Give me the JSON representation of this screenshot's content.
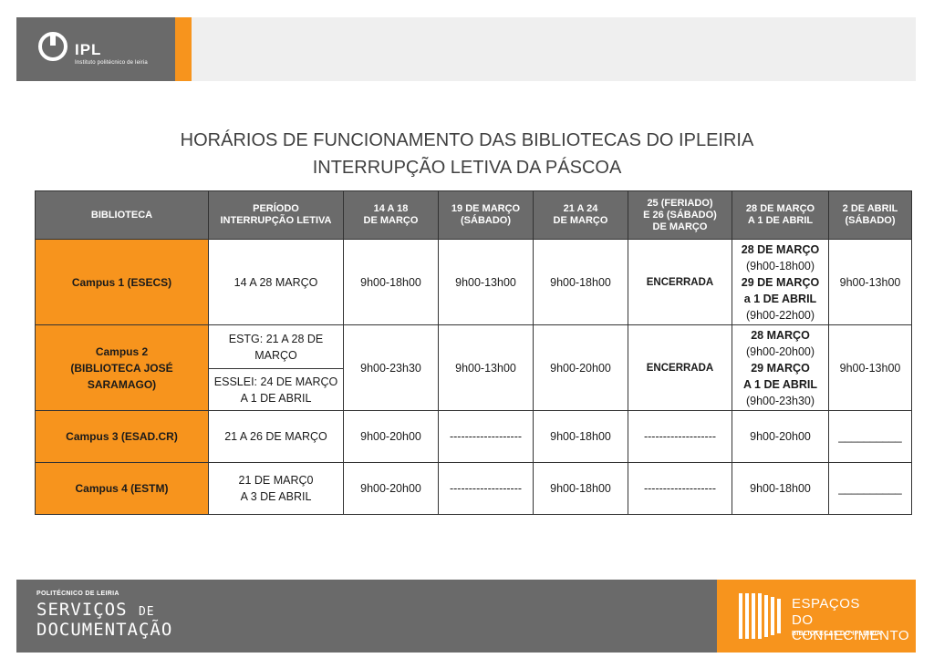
{
  "header": {
    "logo_name": "IPL",
    "logo_subtitle": "Instituto politécnico de leiria",
    "colors": {
      "gray": "#6a6a6a",
      "orange": "#f7941d"
    }
  },
  "titles": {
    "line1": "HORÁRIOS DE FUNCIONAMENTO DAS BIBLIOTECAS DO IPLEIRIA",
    "line2": "INTERRUPÇÃO LETIVA DA PÁSCOA"
  },
  "table": {
    "headers": [
      [
        "BIBLIOTECA"
      ],
      [
        "PERÍODO",
        "INTERRUPÇÃO LETIVA"
      ],
      [
        "14 A 18",
        "DE MARÇO"
      ],
      [
        "19 DE MARÇO",
        "(SÁBADO)"
      ],
      [
        "21 A 24",
        "DE MARÇO"
      ],
      [
        "25 (FERIADO)",
        "E 26 (SÁBADO)",
        "DE MARÇO"
      ],
      [
        "28 DE MARÇO",
        "A 1 DE ABRIL"
      ],
      [
        "2 DE ABRIL",
        "(SÁBADO)"
      ]
    ],
    "campus1": {
      "name": "Campus 1 (ESECS)",
      "period": "14 A 28 MARÇO",
      "c14_18": "9h00-18h00",
      "c19": "9h00-13h00",
      "c21_24": "9h00-18h00",
      "c25_26": "ENCERRADA",
      "c28": {
        "l1": "28 DE MARÇO",
        "l2": "(9h00-18h00)",
        "l3": "29 DE MARÇO",
        "l4": "a 1 DE ABRIL",
        "l5": "(9h00-22h00)"
      },
      "c2abr": "9h00-13h00"
    },
    "campus2": {
      "name": [
        "Campus 2",
        "(BIBLIOTECA JOSÉ",
        "SARAMAGO)"
      ],
      "period_a": [
        "ESTG: 21 A 28 DE",
        "MARÇO"
      ],
      "period_b": [
        "ESSLEI: 24 DE MARÇO",
        "A 1 DE ABRIL"
      ],
      "c14_18": "9h00-23h30",
      "c19": "9h00-13h00",
      "c21_24": "9h00-20h00",
      "c25_26": "ENCERRADA",
      "c28": {
        "l1": "28 MARÇO",
        "l2": "(9h00-20h00)",
        "l3": "29 MARÇO",
        "l4": "A 1 DE ABRIL",
        "l5": "(9h00-23h30)"
      },
      "c2abr": "9h00-13h00"
    },
    "campus3": {
      "name": "Campus 3 (ESAD.CR)",
      "period": "21 A 26 DE MARÇO",
      "c14_18": "9h00-20h00",
      "c19": "-------------------",
      "c21_24": "9h00-18h00",
      "c25_26": "-------------------",
      "c28": "9h00-20h00",
      "c2abr": "__________"
    },
    "campus4": {
      "name": "Campus 4 (ESTM)",
      "period": [
        "21 DE MARÇ0",
        "A 3 DE ABRIL"
      ],
      "c14_18": "9h00-20h00",
      "c19": "-------------------",
      "c21_24": "9h00-18h00",
      "c25_26": "-------------------",
      "c28": "9h00-18h00",
      "c2abr": "__________"
    }
  },
  "footer": {
    "left_small": "POLITÉCNICO DE LEIRIA",
    "left_line1_a": "SERVIÇOS",
    "left_line1_b": "DE",
    "left_line2": "DOCUMENTAÇÃO",
    "right_line1": "ESPAÇOS",
    "right_line2": "DO CONHECIMENTO",
    "right_small": "BIBLIOTECAS DO IPLEIRIA"
  }
}
